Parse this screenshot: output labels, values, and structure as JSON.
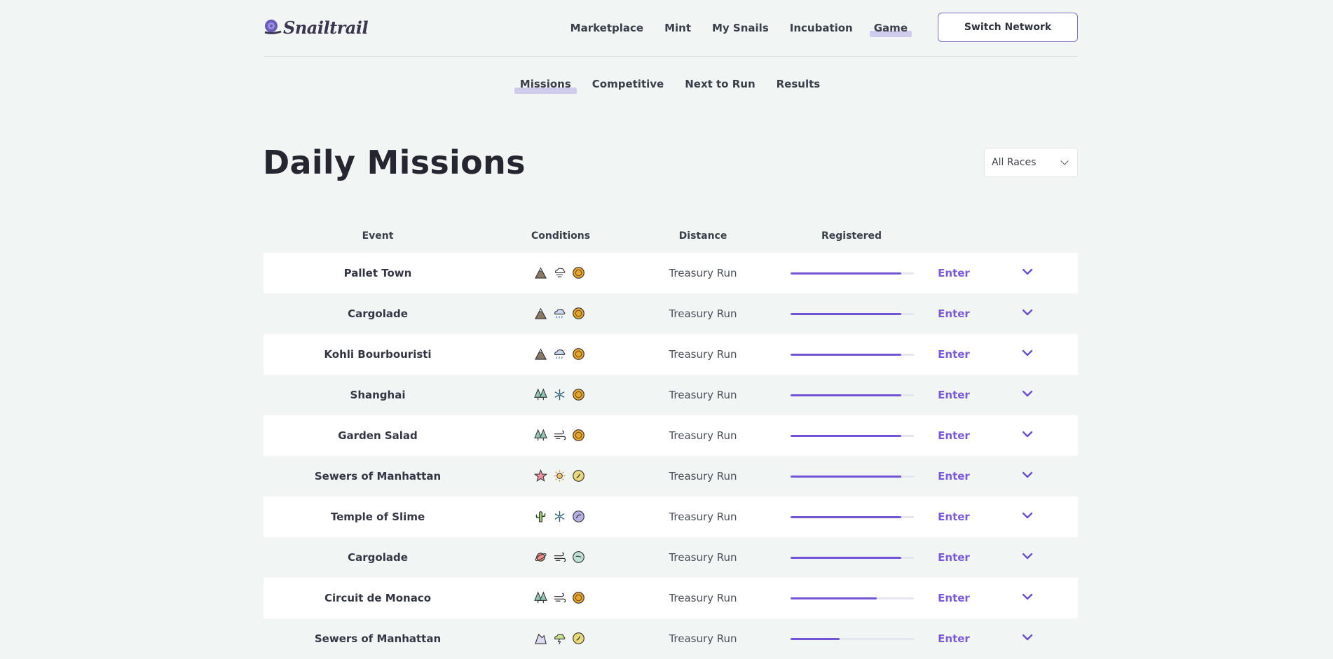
{
  "header": {
    "logo_text": "Snailtrail",
    "nav": [
      {
        "label": "Marketplace",
        "active": false
      },
      {
        "label": "Mint",
        "active": false
      },
      {
        "label": "My Snails",
        "active": false
      },
      {
        "label": "Incubation",
        "active": false
      },
      {
        "label": "Game",
        "active": true
      }
    ],
    "switch_network_label": "Switch Network"
  },
  "subnav": [
    {
      "label": "Missions",
      "active": true
    },
    {
      "label": "Competitive",
      "active": false
    },
    {
      "label": "Next to Run",
      "active": false
    },
    {
      "label": "Results",
      "active": false
    }
  ],
  "page": {
    "title": "Daily Missions",
    "race_filter": "All Races"
  },
  "table": {
    "columns": [
      "Event",
      "Conditions",
      "Distance",
      "Registered"
    ],
    "rows": [
      {
        "event": "Pallet Town",
        "conditions": [
          "mountain-icon",
          "wind-cloud-icon",
          "gold-medal-icon"
        ],
        "distance": "Treasury Run",
        "registered_fraction": 0.9,
        "action": "Enter"
      },
      {
        "event": "Cargolade",
        "conditions": [
          "mountain-icon",
          "rain-cloud-icon",
          "gold-medal-icon"
        ],
        "distance": "Treasury Run",
        "registered_fraction": 0.9,
        "action": "Enter"
      },
      {
        "event": "Kohli Bourbouristi",
        "conditions": [
          "mountain-icon",
          "rain-cloud-icon",
          "gold-medal-icon"
        ],
        "distance": "Treasury Run",
        "registered_fraction": 0.9,
        "action": "Enter"
      },
      {
        "event": "Shanghai",
        "conditions": [
          "forest-icon",
          "snowflake-icon",
          "gold-medal-icon"
        ],
        "distance": "Treasury Run",
        "registered_fraction": 0.9,
        "action": "Enter"
      },
      {
        "event": "Garden Salad",
        "conditions": [
          "forest-icon",
          "wind-icon",
          "gold-medal-icon"
        ],
        "distance": "Treasury Run",
        "registered_fraction": 0.9,
        "action": "Enter"
      },
      {
        "event": "Sewers of Manhattan",
        "conditions": [
          "starfish-icon",
          "sun-icon",
          "yellow-medal-icon"
        ],
        "distance": "Treasury Run",
        "registered_fraction": 0.9,
        "action": "Enter"
      },
      {
        "event": "Temple of Slime",
        "conditions": [
          "cactus-icon",
          "snowflake-icon",
          "purple-medal-icon"
        ],
        "distance": "Treasury Run",
        "registered_fraction": 0.9,
        "action": "Enter"
      },
      {
        "event": "Cargolade",
        "conditions": [
          "planet-icon",
          "wind-icon",
          "teal-medal-icon"
        ],
        "distance": "Treasury Run",
        "registered_fraction": 0.9,
        "action": "Enter"
      },
      {
        "event": "Circuit de Monaco",
        "conditions": [
          "forest-icon",
          "wind-icon",
          "gold-medal-icon"
        ],
        "distance": "Treasury Run",
        "registered_fraction": 0.7,
        "action": "Enter"
      },
      {
        "event": "Sewers of Manhattan",
        "conditions": [
          "rock-icon",
          "storm-cloud-icon",
          "yellow-medal-icon"
        ],
        "distance": "Treasury Run",
        "registered_fraction": 0.4,
        "action": "Enter"
      }
    ]
  },
  "colors": {
    "accent": "#7155d6",
    "enter_link": "#7a5ad8",
    "highlight": "#cfcbec",
    "background": "#f1f5f4"
  }
}
